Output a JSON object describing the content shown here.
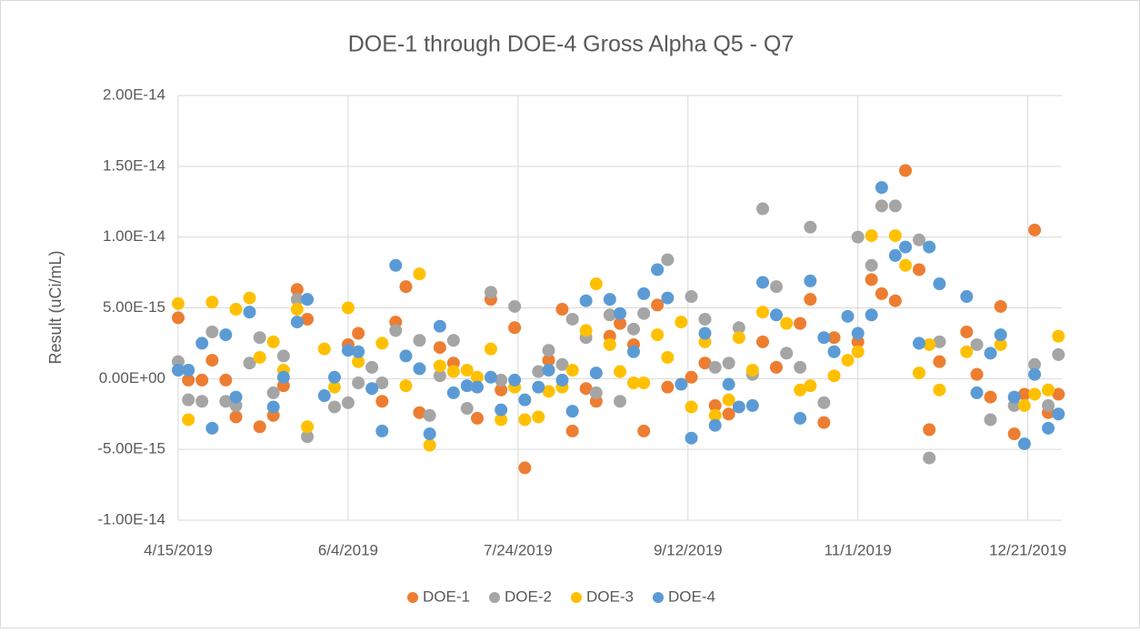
{
  "chart_data": {
    "type": "scatter",
    "title": "DOE-1 through DOE-4 Gross Alpha Q5 - Q7",
    "y_label": "Result (uCi/mL)",
    "xlim": [
      "4/15/2019",
      "12/31/2019"
    ],
    "xticks": [
      "4/15/2019",
      "6/4/2019",
      "7/24/2019",
      "9/12/2019",
      "11/1/2019",
      "12/21/2019"
    ],
    "ylim": [
      -1e-14,
      2e-14
    ],
    "yticks": [
      {
        "value": -1e-14,
        "label": "-1.00E-14"
      },
      {
        "value": -5e-15,
        "label": "-5.00E-15"
      },
      {
        "value": 0,
        "label": "0.00E+00"
      },
      {
        "value": 5e-15,
        "label": "5.00E-15"
      },
      {
        "value": 1e-14,
        "label": "1.00E-14"
      },
      {
        "value": 1.5e-14,
        "label": "1.50E-14"
      },
      {
        "value": 2e-14,
        "label": "2.00E-14"
      }
    ],
    "grid": true,
    "legend": "bottom",
    "series": [
      {
        "name": "DOE-1",
        "color": "#ed7d31",
        "x": [
          "4/15/2019",
          "4/18/2019",
          "4/22/2019",
          "4/25/2019",
          "4/29/2019",
          "5/2/2019",
          "5/9/2019",
          "5/13/2019",
          "5/16/2019",
          "5/20/2019",
          "5/23/2019",
          "6/4/2019",
          "6/7/2019",
          "6/14/2019",
          "6/18/2019",
          "6/21/2019",
          "6/25/2019",
          "7/1/2019",
          "7/5/2019",
          "7/12/2019",
          "7/16/2019",
          "7/19/2019",
          "7/23/2019",
          "7/26/2019",
          "8/2/2019",
          "8/6/2019",
          "8/9/2019",
          "8/13/2019",
          "8/16/2019",
          "8/20/2019",
          "8/23/2019",
          "8/27/2019",
          "8/30/2019",
          "9/3/2019",
          "9/6/2019",
          "9/13/2019",
          "9/17/2019",
          "9/20/2019",
          "9/24/2019",
          "10/4/2019",
          "10/8/2019",
          "10/15/2019",
          "10/18/2019",
          "10/22/2019",
          "10/25/2019",
          "11/1/2019",
          "11/5/2019",
          "11/8/2019",
          "11/12/2019",
          "11/15/2019",
          "11/19/2019",
          "11/22/2019",
          "11/25/2019",
          "12/3/2019",
          "12/6/2019",
          "12/10/2019",
          "12/13/2019",
          "12/17/2019",
          "12/20/2019",
          "12/23/2019",
          "12/27/2019",
          "12/30/2019"
        ],
        "values": [
          4.3e-15,
          -1e-16,
          -1e-16,
          1.3e-15,
          -1e-16,
          -2.7e-15,
          -3.4e-15,
          -2.6e-15,
          -5e-16,
          6.3e-15,
          4.2e-15,
          2.4e-15,
          3.2e-15,
          -1.6e-15,
          4e-15,
          6.5e-15,
          -2.4e-15,
          2.2e-15,
          1.1e-15,
          -2.8e-15,
          5.6e-15,
          -8e-16,
          3.6e-15,
          -6.3e-15,
          1.3e-15,
          4.9e-15,
          -3.7e-15,
          -7e-16,
          -1.6e-15,
          3e-15,
          3.9e-15,
          2.4e-15,
          -3.7e-15,
          5.2e-15,
          -6e-16,
          1e-16,
          1.1e-15,
          -1.9e-15,
          -2.5e-15,
          2.6e-15,
          8e-16,
          3.9e-15,
          5.6e-15,
          -3.1e-15,
          2.9e-15,
          2.6e-15,
          7e-15,
          6e-15,
          5.5e-15,
          1.47e-14,
          7.7e-15,
          -3.6e-15,
          1.2e-15,
          3.3e-15,
          3e-16,
          -1.3e-15,
          5.1e-15,
          -3.9e-15,
          -1.1e-15,
          1.05e-14,
          -2.4e-15,
          -1.1e-15
        ]
      },
      {
        "name": "DOE-2",
        "color": "#a5a5a5",
        "x": [
          "4/15/2019",
          "4/18/2019",
          "4/22/2019",
          "4/25/2019",
          "4/29/2019",
          "5/2/2019",
          "5/6/2019",
          "5/9/2019",
          "5/13/2019",
          "5/16/2019",
          "5/20/2019",
          "5/23/2019",
          "5/31/2019",
          "6/4/2019",
          "6/7/2019",
          "6/11/2019",
          "6/14/2019",
          "6/18/2019",
          "6/25/2019",
          "6/28/2019",
          "7/1/2019",
          "7/5/2019",
          "7/9/2019",
          "7/16/2019",
          "7/19/2019",
          "7/23/2019",
          "7/30/2019",
          "8/2/2019",
          "8/6/2019",
          "8/9/2019",
          "8/13/2019",
          "8/16/2019",
          "8/20/2019",
          "8/23/2019",
          "8/27/2019",
          "8/30/2019",
          "9/6/2019",
          "9/13/2019",
          "9/17/2019",
          "9/20/2019",
          "9/24/2019",
          "9/27/2019",
          "10/1/2019",
          "10/4/2019",
          "10/8/2019",
          "10/11/2019",
          "10/15/2019",
          "10/18/2019",
          "10/22/2019",
          "11/1/2019",
          "11/5/2019",
          "11/8/2019",
          "11/12/2019",
          "11/19/2019",
          "11/22/2019",
          "11/25/2019",
          "12/6/2019",
          "12/10/2019",
          "12/17/2019",
          "12/23/2019",
          "12/27/2019",
          "12/30/2019"
        ],
        "values": [
          1.2e-15,
          -1.5e-15,
          -1.6e-15,
          3.3e-15,
          -1.6e-15,
          -1.9e-15,
          1.1e-15,
          2.9e-15,
          -1e-15,
          1.6e-15,
          5.6e-15,
          -4.1e-15,
          -2e-15,
          -1.7e-15,
          -3e-16,
          8e-16,
          -3e-16,
          3.4e-15,
          2.7e-15,
          -2.6e-15,
          2e-16,
          2.7e-15,
          -2.1e-15,
          6.1e-15,
          -1e-16,
          5.1e-15,
          5e-16,
          2e-15,
          1e-15,
          4.2e-15,
          2.9e-15,
          -1e-15,
          4.5e-15,
          -1.6e-15,
          3.5e-15,
          4.6e-15,
          8.4e-15,
          5.8e-15,
          4.2e-15,
          8e-16,
          1.1e-15,
          3.6e-15,
          3e-16,
          1.2e-14,
          6.5e-15,
          1.8e-15,
          8e-16,
          1.07e-14,
          -1.7e-15,
          1e-14,
          8e-15,
          1.22e-14,
          1.22e-14,
          9.8e-15,
          -5.6e-15,
          2.6e-15,
          2.4e-15,
          -2.9e-15,
          -1.9e-15,
          1e-15,
          -1.9e-15,
          1.7e-15
        ]
      },
      {
        "name": "DOE-3",
        "color": "#ffc000",
        "x": [
          "4/15/2019",
          "4/18/2019",
          "4/25/2019",
          "5/2/2019",
          "5/6/2019",
          "5/9/2019",
          "5/13/2019",
          "5/16/2019",
          "5/20/2019",
          "5/23/2019",
          "5/28/2019",
          "5/31/2019",
          "6/4/2019",
          "6/7/2019",
          "6/14/2019",
          "6/21/2019",
          "6/25/2019",
          "6/28/2019",
          "7/1/2019",
          "7/5/2019",
          "7/9/2019",
          "7/12/2019",
          "7/16/2019",
          "7/19/2019",
          "7/23/2019",
          "7/26/2019",
          "7/30/2019",
          "8/2/2019",
          "8/6/2019",
          "8/9/2019",
          "8/13/2019",
          "8/16/2019",
          "8/20/2019",
          "8/23/2019",
          "8/27/2019",
          "8/30/2019",
          "9/3/2019",
          "9/6/2019",
          "9/10/2019",
          "9/13/2019",
          "9/17/2019",
          "9/20/2019",
          "9/24/2019",
          "9/27/2019",
          "10/1/2019",
          "10/4/2019",
          "10/11/2019",
          "10/15/2019",
          "10/18/2019",
          "10/25/2019",
          "10/29/2019",
          "11/1/2019",
          "11/5/2019",
          "11/12/2019",
          "11/15/2019",
          "11/19/2019",
          "11/22/2019",
          "11/25/2019",
          "12/3/2019",
          "12/13/2019",
          "12/20/2019",
          "12/23/2019",
          "12/27/2019",
          "12/30/2019"
        ],
        "values": [
          5.3e-15,
          -2.9e-15,
          5.4e-15,
          4.9e-15,
          5.7e-15,
          1.5e-15,
          2.6e-15,
          6e-16,
          4.9e-15,
          -3.4e-15,
          2.1e-15,
          -6e-16,
          5e-15,
          1.2e-15,
          2.5e-15,
          -5e-16,
          7.4e-15,
          -4.7e-15,
          9e-16,
          5e-16,
          6e-16,
          1e-16,
          2.1e-15,
          -2.9e-15,
          -6e-16,
          -2.9e-15,
          -2.7e-15,
          -9e-16,
          -6e-16,
          6e-16,
          3.4e-15,
          6.7e-15,
          2.4e-15,
          5e-16,
          -3e-16,
          -3e-16,
          3.1e-15,
          1.5e-15,
          4e-15,
          -2e-15,
          2.6e-15,
          -2.6e-15,
          -1.5e-15,
          2.9e-15,
          6e-16,
          4.7e-15,
          3.9e-15,
          -8e-16,
          -5e-16,
          2e-16,
          1.3e-15,
          1.9e-15,
          1.01e-14,
          1.01e-14,
          8e-15,
          4e-16,
          2.4e-15,
          -8e-16,
          1.9e-15,
          2.4e-15,
          -1.9e-15,
          -1.1e-15,
          -8e-16,
          3e-15
        ]
      },
      {
        "name": "DOE-4",
        "color": "#5b9bd5",
        "x": [
          "4/15/2019",
          "4/18/2019",
          "4/22/2019",
          "4/25/2019",
          "4/29/2019",
          "5/2/2019",
          "5/6/2019",
          "5/13/2019",
          "5/16/2019",
          "5/20/2019",
          "5/23/2019",
          "5/28/2019",
          "5/31/2019",
          "6/4/2019",
          "6/7/2019",
          "6/11/2019",
          "6/14/2019",
          "6/18/2019",
          "6/21/2019",
          "6/25/2019",
          "6/28/2019",
          "7/1/2019",
          "7/5/2019",
          "7/9/2019",
          "7/12/2019",
          "7/16/2019",
          "7/19/2019",
          "7/23/2019",
          "7/26/2019",
          "7/30/2019",
          "8/2/2019",
          "8/6/2019",
          "8/9/2019",
          "8/13/2019",
          "8/16/2019",
          "8/20/2019",
          "8/23/2019",
          "8/27/2019",
          "8/30/2019",
          "9/3/2019",
          "9/6/2019",
          "9/10/2019",
          "9/13/2019",
          "9/17/2019",
          "9/20/2019",
          "9/24/2019",
          "9/27/2019",
          "10/1/2019",
          "10/4/2019",
          "10/8/2019",
          "10/15/2019",
          "10/18/2019",
          "10/22/2019",
          "10/25/2019",
          "10/29/2019",
          "11/1/2019",
          "11/5/2019",
          "11/8/2019",
          "11/12/2019",
          "11/15/2019",
          "11/19/2019",
          "11/22/2019",
          "11/25/2019",
          "12/3/2019",
          "12/6/2019",
          "12/10/2019",
          "12/13/2019",
          "12/17/2019",
          "12/20/2019",
          "12/23/2019",
          "12/27/2019",
          "12/30/2019"
        ],
        "values": [
          6e-16,
          6e-16,
          2.5e-15,
          -3.5e-15,
          3.1e-15,
          -1.3e-15,
          4.7e-15,
          -2e-15,
          1e-16,
          4e-15,
          5.6e-15,
          -1.2e-15,
          1e-16,
          2e-15,
          1.9e-15,
          -7e-16,
          -3.7e-15,
          8e-15,
          1.6e-15,
          7e-16,
          -3.9e-15,
          3.7e-15,
          -1e-15,
          -5e-16,
          -6e-16,
          1e-16,
          -2.2e-15,
          -1e-16,
          -1.5e-15,
          -6e-16,
          6e-16,
          -1e-16,
          -2.3e-15,
          5.5e-15,
          4e-16,
          5.6e-15,
          4.6e-15,
          1.9e-15,
          6e-15,
          7.7e-15,
          5.7e-15,
          -4e-16,
          -4.2e-15,
          3.2e-15,
          -3.3e-15,
          -4e-16,
          -2e-15,
          -1.9e-15,
          6.8e-15,
          4.5e-15,
          -2.8e-15,
          6.9e-15,
          2.9e-15,
          1.9e-15,
          4.4e-15,
          3.2e-15,
          4.5e-15,
          1.35e-14,
          8.7e-15,
          9.3e-15,
          2.5e-15,
          9.3e-15,
          6.7e-15,
          5.8e-15,
          -1e-15,
          1.8e-15,
          3.1e-15,
          -1.3e-15,
          -4.6e-15,
          3e-16,
          -3.5e-15,
          -2.5e-15
        ]
      }
    ]
  }
}
